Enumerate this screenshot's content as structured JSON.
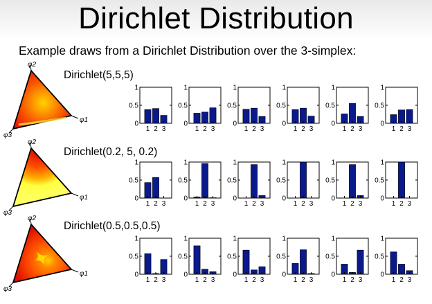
{
  "slide": {
    "title": "Dirichlet Distribution",
    "subtitle": "Example draws from a Dirichlet Distribution over the 3-simplex:"
  },
  "rows": [
    {
      "label": "Dirichlet(5,5,5)",
      "simplex_style": "centered",
      "vertex_labels": [
        "φ2",
        "φ1",
        "φ3"
      ]
    },
    {
      "label": "Dirichlet(0.2, 5, 0.2)",
      "simplex_style": "top-vertex",
      "vertex_labels": [
        "φ2",
        "φ1",
        "φ3"
      ]
    },
    {
      "label": "Dirichlet(0.5,0.5,0.5)",
      "simplex_style": "corners",
      "vertex_labels": [
        "φ2",
        "φ1",
        "φ3"
      ]
    }
  ],
  "chart_data": [
    {
      "type": "bar",
      "categories": [
        "1",
        "2",
        "3"
      ],
      "ylim": [
        0,
        1
      ],
      "yticks": [
        "0",
        "0.5",
        "1"
      ],
      "bar_color": "#0a1a8c",
      "draws": [
        [
          0.38,
          0.41,
          0.22
        ],
        [
          0.28,
          0.31,
          0.43
        ],
        [
          0.39,
          0.42,
          0.19
        ],
        [
          0.38,
          0.42,
          0.2
        ],
        [
          0.26,
          0.55,
          0.19
        ],
        [
          0.24,
          0.37,
          0.38
        ]
      ]
    },
    {
      "type": "bar",
      "categories": [
        "1",
        "2",
        "3"
      ],
      "ylim": [
        0,
        1
      ],
      "yticks": [
        "0",
        "0.5",
        "1"
      ],
      "bar_color": "#0a1a8c",
      "draws": [
        [
          0.43,
          0.57,
          0.0
        ],
        [
          0.03,
          0.96,
          0.01
        ],
        [
          0.0,
          0.93,
          0.07
        ],
        [
          0.0,
          1.0,
          0.0
        ],
        [
          0.0,
          0.93,
          0.07
        ],
        [
          0.0,
          1.0,
          0.0
        ]
      ]
    },
    {
      "type": "bar",
      "categories": [
        "1",
        "2",
        "3"
      ],
      "ylim": [
        0,
        1
      ],
      "yticks": [
        "0",
        "0.5",
        "1"
      ],
      "bar_color": "#0a1a8c",
      "draws": [
        [
          0.57,
          0.02,
          0.41
        ],
        [
          0.79,
          0.14,
          0.07
        ],
        [
          0.67,
          0.12,
          0.21
        ],
        [
          0.3,
          0.68,
          0.02
        ],
        [
          0.28,
          0.05,
          0.67
        ],
        [
          0.62,
          0.28,
          0.1
        ]
      ]
    }
  ]
}
